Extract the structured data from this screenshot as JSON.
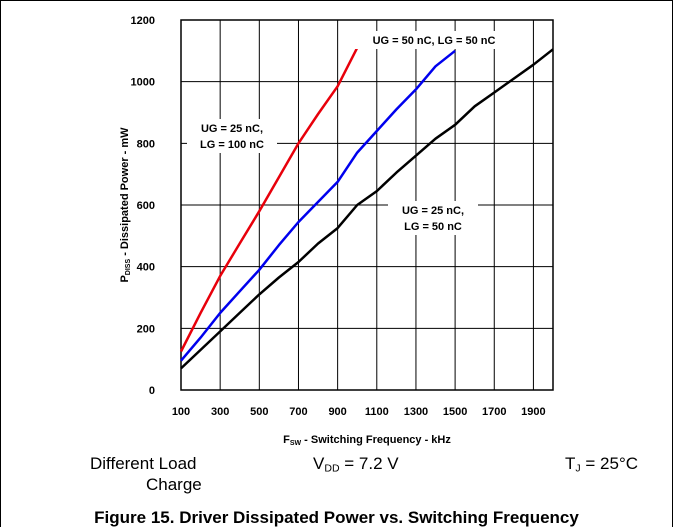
{
  "chart_data": {
    "type": "line",
    "xlabel_main": "F",
    "xlabel_sub": "SW",
    "xlabel_rest": " - Switching Frequency - kHz",
    "ylabel_main": "P",
    "ylabel_sub": "DISS",
    "ylabel_rest": " - Dissipated Power - mW",
    "xlim": [
      100,
      2000
    ],
    "ylim": [
      0,
      1200
    ],
    "x_ticks": [
      "100",
      "300",
      "500",
      "700",
      "900",
      "1100",
      "1300",
      "1500",
      "1700",
      "1900"
    ],
    "y_ticks": [
      "0",
      "200",
      "400",
      "600",
      "800",
      "1000",
      "1200"
    ],
    "grid": true,
    "series": [
      {
        "color": "#e8000b",
        "x": [
          100,
          200,
          300,
          400,
          500,
          600,
          700,
          800,
          900,
          1000
        ],
        "y": [
          125,
          250,
          370,
          475,
          580,
          690,
          800,
          895,
          985,
          1110
        ]
      },
      {
        "color": "#0000ee",
        "x": [
          100,
          200,
          300,
          400,
          500,
          600,
          700,
          800,
          900,
          1000,
          1100,
          1200,
          1300,
          1400,
          1500
        ],
        "y": [
          95,
          170,
          250,
          320,
          390,
          470,
          545,
          610,
          675,
          770,
          840,
          910,
          975,
          1050,
          1100
        ]
      },
      {
        "color": "#000000",
        "x": [
          100,
          200,
          300,
          400,
          500,
          600,
          700,
          800,
          900,
          1000,
          1100,
          1200,
          1300,
          1400,
          1500,
          1600,
          1700,
          1800,
          1900,
          2000
        ],
        "y": [
          70,
          130,
          190,
          250,
          310,
          365,
          415,
          475,
          525,
          600,
          645,
          705,
          760,
          815,
          860,
          920,
          965,
          1010,
          1055,
          1105
        ]
      }
    ],
    "annotations": [
      {
        "lines": [
          "UG = 50 nC, LG = 50 nC"
        ]
      },
      {
        "lines": [
          "UG = 25 nC,",
          "LG = 100 nC"
        ]
      },
      {
        "lines": [
          "UG = 25 nC,",
          "LG = 50 nC"
        ]
      }
    ]
  },
  "conditions": {
    "load_line1": "Different Load",
    "load_line2": "Charge",
    "vdd_main": "V",
    "vdd_sub": "DD",
    "vdd_rest": " = 7.2 V",
    "tj_main": "T",
    "tj_sub": "J",
    "tj_rest": " = 25°C"
  },
  "caption": "Figure 15. Driver Dissipated Power vs. Switching Frequency"
}
